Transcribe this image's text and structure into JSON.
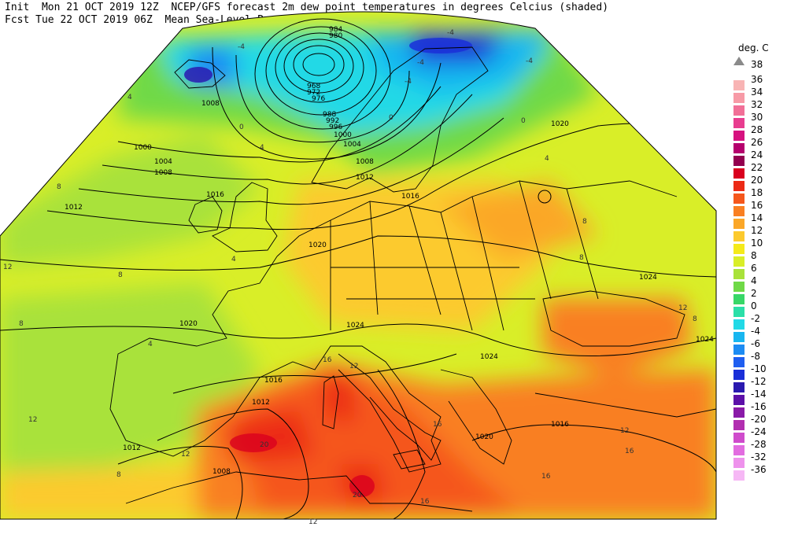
{
  "header": {
    "line1_left": "Init  Mon 21 OCT 2019 12Z",
    "line1_right": "NCEP/GFS forecast 2m dew point temperatures in degrees Celcius (shaded)",
    "line2_left": "Fcst Tue 22 OCT 2019 06Z",
    "line2_right": "Mean Sea-Level Pressure (hPa) (black)."
  },
  "legend": {
    "unit": "deg. C",
    "top_label": "38",
    "entries": [
      {
        "label": "36",
        "color": "#f8b4b4"
      },
      {
        "label": "34",
        "color": "#f79aa6"
      },
      {
        "label": "32",
        "color": "#f16f97"
      },
      {
        "label": "30",
        "color": "#e83d8f"
      },
      {
        "label": "28",
        "color": "#d6127f"
      },
      {
        "label": "26",
        "color": "#b5006d"
      },
      {
        "label": "24",
        "color": "#93004f"
      },
      {
        "label": "22",
        "color": "#d9001e"
      },
      {
        "label": "20",
        "color": "#ec2a16"
      },
      {
        "label": "18",
        "color": "#f5571c"
      },
      {
        "label": "16",
        "color": "#f97f22"
      },
      {
        "label": "14",
        "color": "#fba728"
      },
      {
        "label": "12",
        "color": "#fcca2e"
      },
      {
        "label": "10",
        "color": "#f5ea1a"
      },
      {
        "label": "8",
        "color": "#d9ee28"
      },
      {
        "label": "6",
        "color": "#a9e23a"
      },
      {
        "label": "4",
        "color": "#6fd947"
      },
      {
        "label": "2",
        "color": "#38d768"
      },
      {
        "label": "0",
        "color": "#2bdfa8"
      },
      {
        "label": "-2",
        "color": "#22d9e6"
      },
      {
        "label": "-4",
        "color": "#18b6f0"
      },
      {
        "label": "-6",
        "color": "#1d8cf3"
      },
      {
        "label": "-8",
        "color": "#1f5ef0"
      },
      {
        "label": "-10",
        "color": "#1a2fd8"
      },
      {
        "label": "-12",
        "color": "#2a1ab0"
      },
      {
        "label": "-14",
        "color": "#5c10a8"
      },
      {
        "label": "-16",
        "color": "#8a1aa8"
      },
      {
        "label": "-20",
        "color": "#b22fb0"
      },
      {
        "label": "-24",
        "color": "#cf4bcc"
      },
      {
        "label": "-28",
        "color": "#e26ce0"
      },
      {
        "label": "-32",
        "color": "#ee92ec"
      },
      {
        "label": "-36",
        "color": "#f6b8f5"
      }
    ]
  },
  "isobar_labels": [
    "984",
    "980",
    "968",
    "972",
    "976",
    "988",
    "992",
    "996",
    "1000",
    "1004",
    "1008",
    "1012",
    "1016",
    "1020",
    "1024",
    "1008",
    "1000",
    "1004",
    "1008",
    "1012",
    "1016",
    "1020",
    "1024",
    "1024",
    "1016",
    "1012",
    "1012",
    "1008",
    "1024",
    "1020",
    "1016",
    "1020"
  ],
  "dewpoint_labels": [
    "-4",
    "-4",
    "-4",
    "-4",
    "-4",
    "0",
    "0",
    "0",
    "4",
    "4",
    "4",
    "4",
    "4",
    "8",
    "8",
    "8",
    "8",
    "8",
    "8",
    "8",
    "12",
    "12",
    "12",
    "12",
    "12",
    "12",
    "12",
    "16",
    "16",
    "16",
    "16",
    "16",
    "20",
    "20"
  ],
  "colors": {
    "coast": "#000000",
    "isobar": "#000000",
    "background": "#ffffff"
  }
}
